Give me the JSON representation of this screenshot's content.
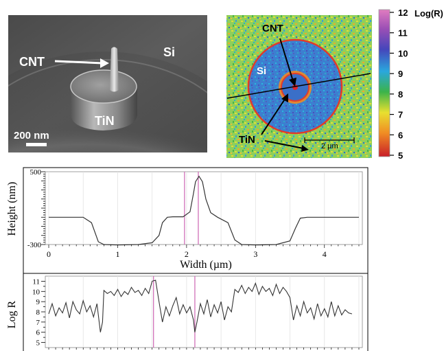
{
  "sem": {
    "cnt": "CNT",
    "si": "Si",
    "tin": "TiN",
    "scale": "200 nm"
  },
  "map": {
    "cnt": "CNT",
    "si": "Si",
    "tin": "TiN",
    "scale": "2 µm"
  },
  "colorbar": {
    "title": "Log(R)",
    "ticks": [
      "12",
      "11",
      "10",
      "9",
      "8",
      "7",
      "6",
      "5"
    ],
    "colors": [
      "#d75fb4",
      "#8e4fb0",
      "#3f46b8",
      "#25b4d8",
      "#39b24a",
      "#e6e02a",
      "#f08a22",
      "#d2232a"
    ]
  },
  "chart_data": [
    {
      "type": "line",
      "ylabel": "Height (nm)",
      "xlabel": "Width (µm)",
      "xlim": [
        -0.05,
        4.55
      ],
      "ylim": [
        -300,
        500
      ],
      "ytick_labels": [
        "500",
        "-300"
      ],
      "xtick_labels": [
        "0",
        "1",
        "2",
        "3",
        "4"
      ],
      "markers_x": [
        1.97,
        2.17
      ],
      "x": [
        0,
        0.5,
        0.62,
        0.72,
        0.8,
        1.0,
        1.3,
        1.5,
        1.6,
        1.65,
        1.72,
        1.8,
        1.95,
        2.05,
        2.1,
        2.13,
        2.18,
        2.23,
        2.28,
        2.35,
        2.45,
        2.6,
        2.7,
        2.8,
        3.0,
        3.3,
        3.5,
        3.58,
        3.65,
        3.75,
        4.0,
        4.5
      ],
      "y": [
        0,
        0,
        -60,
        -270,
        -300,
        -305,
        -300,
        -280,
        -200,
        -60,
        0,
        5,
        5,
        60,
        260,
        390,
        450,
        390,
        200,
        50,
        0,
        -60,
        -250,
        -300,
        -305,
        -300,
        -260,
        -120,
        -10,
        0,
        0,
        0
      ]
    },
    {
      "type": "line",
      "ylabel": "Log R",
      "xlim": [
        -0.05,
        4.55
      ],
      "ylim": [
        4.5,
        11.5
      ],
      "ytick_labels": [
        "11",
        "10",
        "9",
        "8",
        "7",
        "6",
        "5"
      ],
      "markers_x": [
        1.52,
        2.12
      ],
      "x": [
        0,
        0.05,
        0.1,
        0.15,
        0.2,
        0.25,
        0.3,
        0.35,
        0.4,
        0.45,
        0.5,
        0.55,
        0.6,
        0.65,
        0.7,
        0.75,
        0.78,
        0.8,
        0.85,
        0.9,
        0.95,
        1.0,
        1.05,
        1.1,
        1.15,
        1.2,
        1.25,
        1.3,
        1.35,
        1.4,
        1.45,
        1.5,
        1.55,
        1.6,
        1.65,
        1.7,
        1.75,
        1.8,
        1.85,
        1.9,
        1.95,
        2.0,
        2.05,
        2.1,
        2.12,
        2.15,
        2.2,
        2.25,
        2.3,
        2.35,
        2.4,
        2.45,
        2.5,
        2.55,
        2.6,
        2.65,
        2.7,
        2.75,
        2.8,
        2.85,
        2.9,
        2.95,
        3.0,
        3.05,
        3.1,
        3.15,
        3.2,
        3.25,
        3.3,
        3.35,
        3.4,
        3.45,
        3.5,
        3.55,
        3.6,
        3.65,
        3.7,
        3.75,
        3.8,
        3.85,
        3.9,
        3.95,
        4.0,
        4.05,
        4.1,
        4.15,
        4.2,
        4.25,
        4.3,
        4.35,
        4.4
      ],
      "y": [
        7.8,
        8.8,
        7.6,
        8.4,
        7.9,
        8.9,
        7.4,
        9.0,
        8.2,
        7.8,
        9.1,
        8.0,
        8.6,
        7.5,
        8.8,
        6.0,
        7.0,
        10.1,
        9.8,
        10.0,
        9.6,
        10.2,
        9.5,
        10.0,
        9.7,
        10.4,
        9.9,
        10.1,
        9.6,
        10.3,
        9.8,
        11.0,
        11.1,
        9.0,
        7.0,
        8.5,
        7.6,
        8.6,
        9.4,
        7.8,
        8.7,
        7.9,
        8.5,
        7.2,
        6.0,
        7.0,
        8.8,
        7.8,
        9.2,
        7.5,
        8.7,
        7.9,
        9.0,
        7.2,
        8.5,
        8.0,
        10.2,
        9.9,
        10.6,
        9.8,
        10.4,
        10.0,
        10.8,
        9.7,
        10.5,
        10.0,
        10.3,
        9.6,
        10.7,
        9.8,
        10.4,
        10.0,
        9.4,
        7.2,
        8.6,
        7.6,
        9.0,
        7.9,
        8.4,
        7.3,
        8.8,
        7.6,
        8.3,
        7.5,
        9.0,
        7.6,
        8.6,
        7.7,
        8.2,
        7.9,
        7.8
      ]
    }
  ]
}
